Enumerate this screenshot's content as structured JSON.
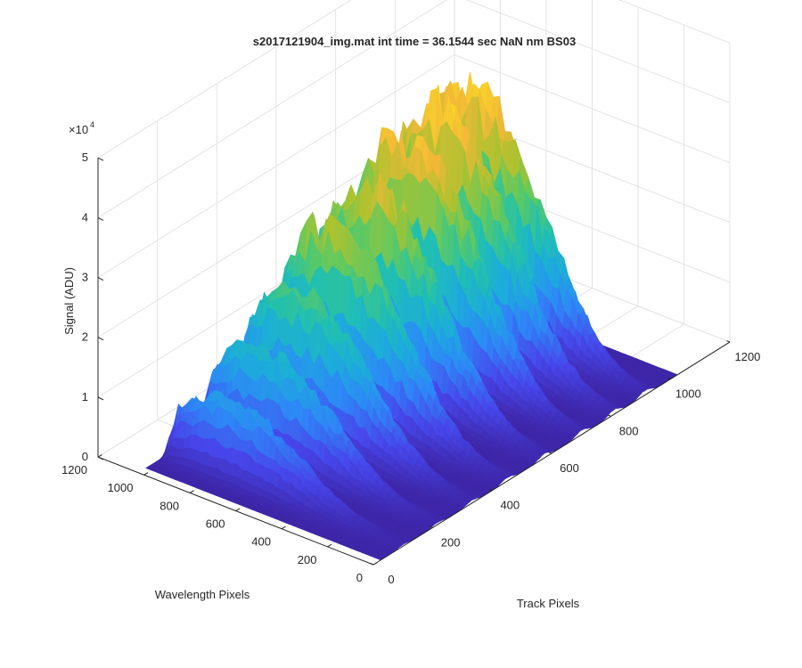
{
  "chart_data": {
    "type": "surface",
    "title": "s2017121904_img.mat int time = 36.1544 sec  NaN nm BS03",
    "xlabel": "Track Pixels",
    "ylabel": "Wavelength Pixels",
    "zlabel": "Signal (ADU)",
    "z_exponent_label": "×10",
    "z_exponent_power": "4",
    "z_multiplier": 10000,
    "xlim": [
      0,
      1200
    ],
    "ylim": [
      0,
      1200
    ],
    "zlim": [
      0,
      50000
    ],
    "x_ticks": [
      "0",
      "200",
      "400",
      "600",
      "800",
      "1000",
      "1200"
    ],
    "y_ticks": [
      "0",
      "200",
      "400",
      "600",
      "800",
      "1000",
      "1200"
    ],
    "z_ticks": [
      "0",
      "1",
      "2",
      "3",
      "4",
      "5"
    ],
    "grid": true,
    "colormap": "parula",
    "colormap_stops": [
      "#3e26a8",
      "#4746eb",
      "#2e87f7",
      "#1cacdb",
      "#21c0b0",
      "#5dc962",
      "#abc230",
      "#f2b838",
      "#f9d529"
    ],
    "x_extent": [
      25,
      1024
    ],
    "y_extent": [
      0,
      1024
    ],
    "tracks": [
      {
        "track_center": 100,
        "peak_signal": 13000
      },
      {
        "track_center": 215,
        "peak_signal": 18000
      },
      {
        "track_center": 330,
        "peak_signal": 24000
      },
      {
        "track_center": 450,
        "peak_signal": 31000
      },
      {
        "track_center": 575,
        "peak_signal": 34000
      },
      {
        "track_center": 700,
        "peak_signal": 38000
      },
      {
        "track_center": 810,
        "peak_signal": 40000
      },
      {
        "track_center": 915,
        "peak_signal": 40000
      }
    ],
    "wavelength_profile_peak": 760
  }
}
